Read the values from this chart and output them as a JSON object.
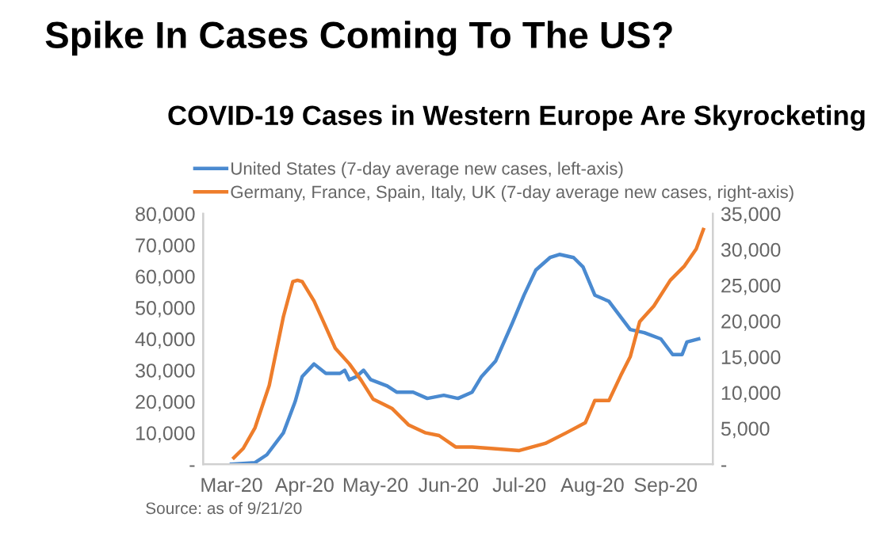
{
  "chart_data": {
    "type": "line",
    "title": "Spike In Cases Coming To The US?",
    "subtitle": "COVID-19 Cases in Western Europe Are Skyrocketing",
    "annotations": [
      "Source: as of 9/21/20"
    ],
    "xlim": [
      "2020-02-18",
      "2020-09-21"
    ],
    "xticks": [
      {
        "value": "2020-03-01",
        "label": "Mar-20"
      },
      {
        "value": "2020-04-01",
        "label": "Apr-20"
      },
      {
        "value": "2020-05-01",
        "label": "May-20"
      },
      {
        "value": "2020-06-01",
        "label": "Jun-20"
      },
      {
        "value": "2020-07-01",
        "label": "Jul-20"
      },
      {
        "value": "2020-08-01",
        "label": "Aug-20"
      },
      {
        "value": "2020-09-01",
        "label": "Sep-20"
      }
    ],
    "ylim": [
      0,
      80000
    ],
    "yticks": [
      {
        "value": 0,
        "label": "-"
      },
      {
        "value": 10000,
        "label": "10,000"
      },
      {
        "value": 20000,
        "label": "20,000"
      },
      {
        "value": 30000,
        "label": "30,000"
      },
      {
        "value": 40000,
        "label": "40,000"
      },
      {
        "value": 50000,
        "label": "50,000"
      },
      {
        "value": 60000,
        "label": "60,000"
      },
      {
        "value": 70000,
        "label": "70,000"
      },
      {
        "value": 80000,
        "label": "80,000"
      }
    ],
    "y2lim": [
      0,
      35000
    ],
    "y2ticks": [
      {
        "value": 0,
        "label": "-"
      },
      {
        "value": 5000,
        "label": "5,000"
      },
      {
        "value": 10000,
        "label": "10,000"
      },
      {
        "value": 15000,
        "label": "15,000"
      },
      {
        "value": 20000,
        "label": "20,000"
      },
      {
        "value": 25000,
        "label": "25,000"
      },
      {
        "value": 30000,
        "label": "30,000"
      },
      {
        "value": 35000,
        "label": "35,000"
      }
    ],
    "grid": false,
    "legend": "top",
    "marker": "none",
    "line_style": "solid",
    "series": [
      {
        "name": "United States (7-day average new cases, left-axis)",
        "color": "#4a8ad0",
        "axis": "y",
        "x": [
          "2020-03-01",
          "2020-03-11",
          "2020-03-16",
          "2020-03-23",
          "2020-03-28",
          "2020-03-31",
          "2020-04-05",
          "2020-04-10",
          "2020-04-16",
          "2020-04-18",
          "2020-04-20",
          "2020-04-23",
          "2020-04-26",
          "2020-04-29",
          "2020-05-06",
          "2020-05-10",
          "2020-05-17",
          "2020-05-23",
          "2020-05-30",
          "2020-06-05",
          "2020-06-11",
          "2020-06-15",
          "2020-06-21",
          "2020-06-28",
          "2020-07-03",
          "2020-07-08",
          "2020-07-14",
          "2020-07-18",
          "2020-07-24",
          "2020-07-28",
          "2020-08-02",
          "2020-08-08",
          "2020-08-13",
          "2020-08-17",
          "2020-08-23",
          "2020-08-30",
          "2020-09-04",
          "2020-09-08",
          "2020-09-10",
          "2020-09-15"
        ],
        "values": [
          0,
          500,
          3000,
          10000,
          20000,
          28000,
          32000,
          29000,
          29000,
          30000,
          27000,
          28000,
          30000,
          27000,
          25000,
          23000,
          23000,
          21000,
          22000,
          21000,
          23000,
          28000,
          33000,
          45000,
          54000,
          62000,
          66000,
          67000,
          66000,
          63000,
          54000,
          52000,
          47000,
          43000,
          42000,
          40000,
          35000,
          35000,
          39000,
          40000
        ]
      },
      {
        "name": "Germany, France, Spain, Italy, UK (7-day average new cases, right-axis)",
        "color": "#ee7d2b",
        "axis": "y2",
        "x": [
          "2020-03-02",
          "2020-03-06",
          "2020-03-11",
          "2020-03-17",
          "2020-03-23",
          "2020-03-27",
          "2020-03-29",
          "2020-03-31",
          "2020-04-05",
          "2020-04-09",
          "2020-04-14",
          "2020-04-20",
          "2020-04-25",
          "2020-04-30",
          "2020-05-08",
          "2020-05-15",
          "2020-05-22",
          "2020-05-28",
          "2020-06-04",
          "2020-06-11",
          "2020-06-19",
          "2020-07-01",
          "2020-07-12",
          "2020-07-21",
          "2020-07-29",
          "2020-08-02",
          "2020-08-08",
          "2020-08-13",
          "2020-08-17",
          "2020-08-21",
          "2020-08-27",
          "2020-09-03",
          "2020-09-09",
          "2020-09-14",
          "2020-09-17"
        ],
        "values": [
          900,
          2200,
          5100,
          11000,
          20600,
          25500,
          25700,
          25500,
          22800,
          19900,
          16200,
          14000,
          11700,
          9100,
          7800,
          5500,
          4400,
          4000,
          2400,
          2400,
          2200,
          1900,
          2900,
          4400,
          5800,
          8900,
          8900,
          12400,
          15000,
          19900,
          22100,
          25700,
          27700,
          30100,
          32800
        ]
      }
    ]
  }
}
